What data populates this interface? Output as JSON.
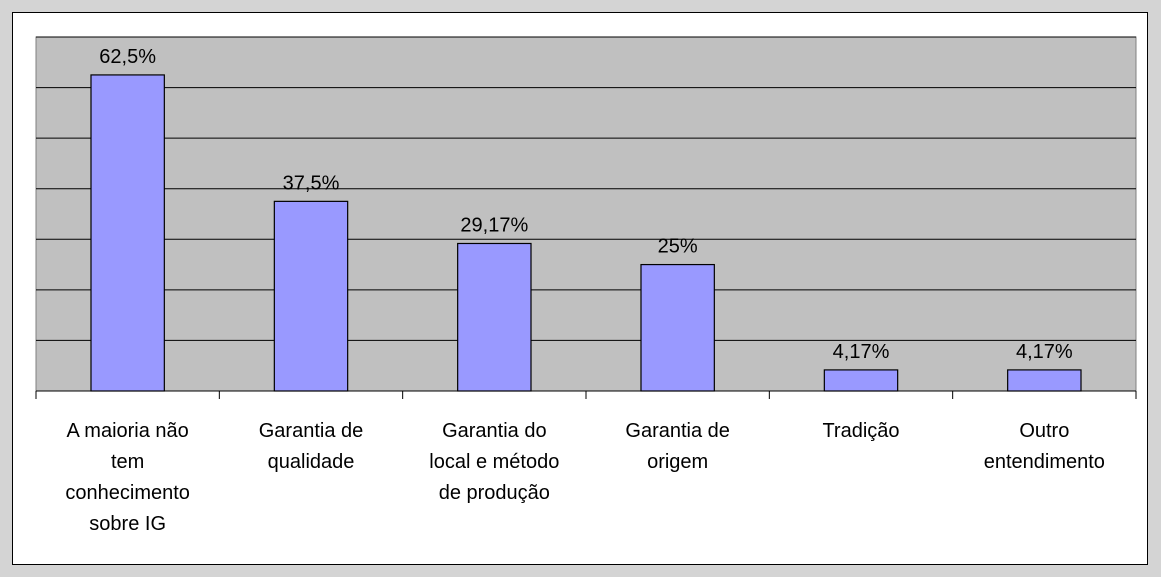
{
  "chart_data": {
    "type": "bar",
    "categories": [
      "A maioria não tem conhecimento sobre IG",
      "Garantia de qualidade",
      "Garantia do local e método de produção",
      "Garantia de origem",
      "Tradição",
      "Outro entendimento"
    ],
    "values": [
      62.5,
      37.5,
      29.17,
      25,
      4.17,
      4.17
    ],
    "value_labels": [
      "62,5%",
      "37,5%",
      "29,17%",
      "25%",
      "4,17%",
      "4,17%"
    ],
    "color": "#9999ff",
    "ylim": [
      0,
      70
    ],
    "yticks": [
      0,
      10,
      20,
      30,
      40,
      50,
      60,
      70
    ],
    "grid": true
  }
}
